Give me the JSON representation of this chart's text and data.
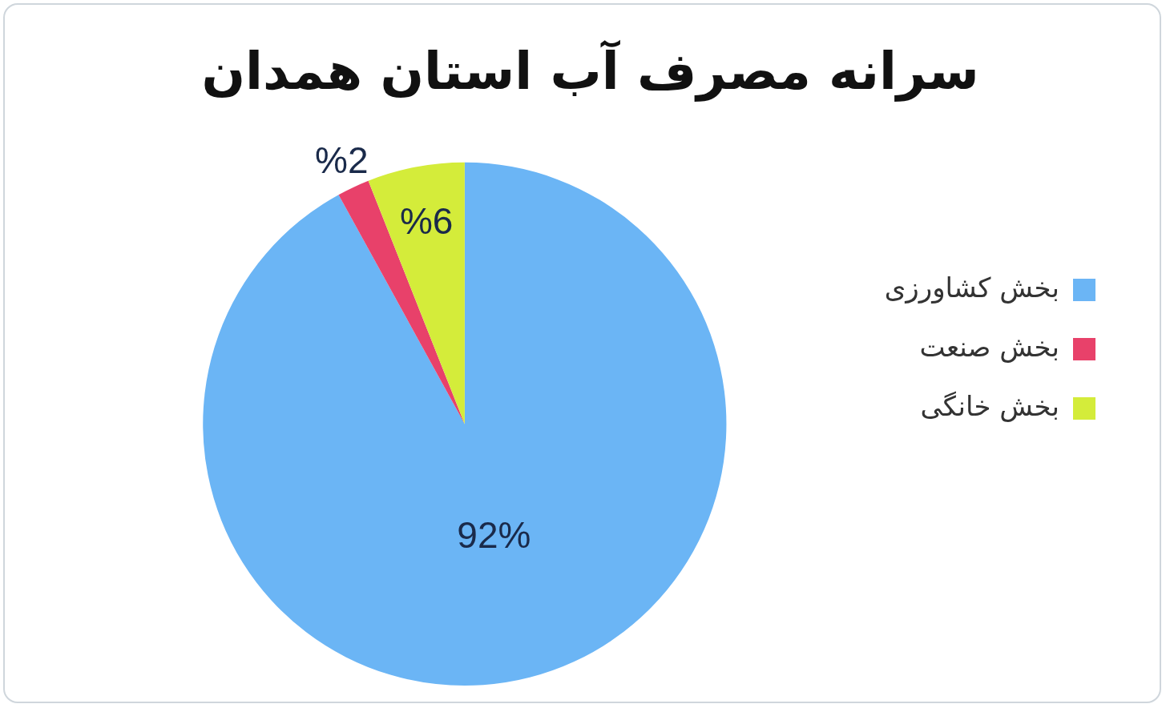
{
  "chart_data": {
    "type": "pie",
    "title": "سرانه مصرف آب استان همدان",
    "categories": [
      "بخش کشاورزی",
      "بخش صنعت",
      "بخش خانگی"
    ],
    "values": [
      92,
      2,
      6
    ],
    "colors": [
      "#6bb5f5",
      "#e8416a",
      "#d4ec3a"
    ],
    "value_labels": [
      "92%",
      "%2",
      "%6"
    ],
    "legend": "right"
  }
}
